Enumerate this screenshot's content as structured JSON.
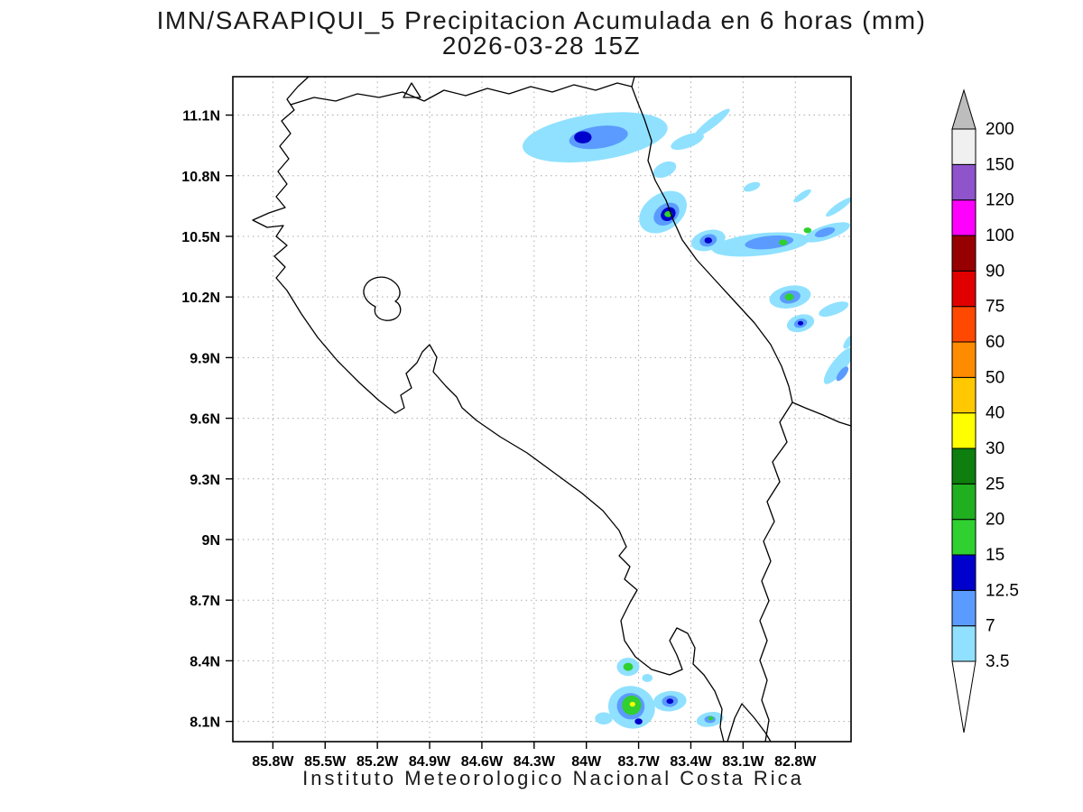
{
  "title": {
    "line1": "IMN/SARAPIQUI_5 Precipitacion Acumulada en 6 horas (mm)",
    "line2": "2026-03-28 15Z"
  },
  "footer": "Instituto Meteorologico Nacional Costa Rica",
  "chart_data": {
    "type": "map-contour",
    "title": "IMN/SARAPIQUI_5 Precipitacion Acumulada en 6 horas (mm)",
    "valid_time": "2026-03-28 15Z",
    "units": "mm",
    "region": "Costa Rica",
    "lon_range_w": [
      86.03,
      82.48
    ],
    "lat_range": [
      8.0,
      11.29
    ],
    "lon_ticks": [
      {
        "label": "85.8W",
        "value": 85.8
      },
      {
        "label": "85.5W",
        "value": 85.5
      },
      {
        "label": "85.2W",
        "value": 85.2
      },
      {
        "label": "84.9W",
        "value": 84.9
      },
      {
        "label": "84.6W",
        "value": 84.6
      },
      {
        "label": "84.3W",
        "value": 84.3
      },
      {
        "label": "84W",
        "value": 84.0
      },
      {
        "label": "83.7W",
        "value": 83.7
      },
      {
        "label": "83.4W",
        "value": 83.4
      },
      {
        "label": "83.1W",
        "value": 83.1
      },
      {
        "label": "82.8W",
        "value": 82.8
      }
    ],
    "lat_ticks": [
      {
        "label": "11.1N",
        "value": 11.1
      },
      {
        "label": "10.8N",
        "value": 10.8
      },
      {
        "label": "10.5N",
        "value": 10.5
      },
      {
        "label": "10.2N",
        "value": 10.2
      },
      {
        "label": "9.9N",
        "value": 9.9
      },
      {
        "label": "9.6N",
        "value": 9.6
      },
      {
        "label": "9.3N",
        "value": 9.3
      },
      {
        "label": "9N",
        "value": 9.0
      },
      {
        "label": "8.7N",
        "value": 8.7
      },
      {
        "label": "8.4N",
        "value": 8.4
      },
      {
        "label": "8.1N",
        "value": 8.1
      }
    ],
    "legend": {
      "levels": [
        3.5,
        7,
        12.5,
        15,
        20,
        25,
        30,
        40,
        50,
        60,
        75,
        90,
        100,
        120,
        150,
        200
      ],
      "labels": [
        "3.5",
        "7",
        "12.5",
        "15",
        "20",
        "25",
        "30",
        "40",
        "50",
        "60",
        "75",
        "90",
        "100",
        "120",
        "150",
        "200"
      ],
      "colors": [
        "#8fe1ff",
        "#5b9bff",
        "#0000cd",
        "#2fd02f",
        "#1faf1f",
        "#0e7e0e",
        "#ffff00",
        "#ffc800",
        "#ff8c00",
        "#ff4800",
        "#e00000",
        "#970000",
        "#ff00ff",
        "#8f53cc",
        "#f0f0f0",
        "#bdbdbd"
      ],
      "below_color": "#ffffff"
    },
    "precip_cells": [
      {
        "lon_w": 83.95,
        "lat": 10.99,
        "rx_deg": 0.42,
        "ry_deg": 0.115,
        "rot": -8,
        "level_mm": 3.5
      },
      {
        "lon_w": 83.93,
        "lat": 10.99,
        "rx_deg": 0.17,
        "ry_deg": 0.055,
        "rot": -8,
        "level_mm": 7
      },
      {
        "lon_w": 84.02,
        "lat": 10.99,
        "rx_deg": 0.05,
        "ry_deg": 0.03,
        "rot": 0,
        "level_mm": 12.5
      },
      {
        "lon_w": 83.42,
        "lat": 10.97,
        "rx_deg": 0.1,
        "ry_deg": 0.032,
        "rot": -20,
        "level_mm": 3.5
      },
      {
        "lon_w": 83.28,
        "lat": 11.06,
        "rx_deg": 0.13,
        "ry_deg": 0.022,
        "rot": -38,
        "level_mm": 3.5
      },
      {
        "lon_w": 83.55,
        "lat": 10.83,
        "rx_deg": 0.07,
        "ry_deg": 0.035,
        "rot": -25,
        "level_mm": 3.5
      },
      {
        "lon_w": 83.56,
        "lat": 10.62,
        "rx_deg": 0.15,
        "ry_deg": 0.09,
        "rot": -35,
        "level_mm": 3.5
      },
      {
        "lon_w": 83.54,
        "lat": 10.61,
        "rx_deg": 0.08,
        "ry_deg": 0.05,
        "rot": -35,
        "level_mm": 7
      },
      {
        "lon_w": 83.53,
        "lat": 10.61,
        "rx_deg": 0.045,
        "ry_deg": 0.032,
        "rot": -35,
        "level_mm": 12.5
      },
      {
        "lon_w": 83.53,
        "lat": 10.61,
        "rx_deg": 0.022,
        "ry_deg": 0.015,
        "rot": 0,
        "level_mm": 15
      },
      {
        "lon_w": 83.3,
        "lat": 10.48,
        "rx_deg": 0.1,
        "ry_deg": 0.05,
        "rot": -15,
        "level_mm": 3.5
      },
      {
        "lon_w": 83.3,
        "lat": 10.48,
        "rx_deg": 0.05,
        "ry_deg": 0.03,
        "rot": -15,
        "level_mm": 7
      },
      {
        "lon_w": 83.3,
        "lat": 10.48,
        "rx_deg": 0.022,
        "ry_deg": 0.015,
        "rot": 0,
        "level_mm": 12.5
      },
      {
        "lon_w": 83.0,
        "lat": 10.46,
        "rx_deg": 0.28,
        "ry_deg": 0.055,
        "rot": -6,
        "level_mm": 3.5
      },
      {
        "lon_w": 82.95,
        "lat": 10.47,
        "rx_deg": 0.14,
        "ry_deg": 0.032,
        "rot": -6,
        "level_mm": 7
      },
      {
        "lon_w": 82.87,
        "lat": 10.47,
        "rx_deg": 0.024,
        "ry_deg": 0.015,
        "rot": 0,
        "level_mm": 15
      },
      {
        "lon_w": 82.62,
        "lat": 10.52,
        "rx_deg": 0.14,
        "ry_deg": 0.035,
        "rot": -18,
        "level_mm": 3.5
      },
      {
        "lon_w": 82.63,
        "lat": 10.52,
        "rx_deg": 0.06,
        "ry_deg": 0.02,
        "rot": -18,
        "level_mm": 7
      },
      {
        "lon_w": 82.73,
        "lat": 10.53,
        "rx_deg": 0.022,
        "ry_deg": 0.014,
        "rot": 0,
        "level_mm": 15
      },
      {
        "lon_w": 82.55,
        "lat": 10.645,
        "rx_deg": 0.09,
        "ry_deg": 0.018,
        "rot": -35,
        "level_mm": 3.5
      },
      {
        "lon_w": 82.76,
        "lat": 10.7,
        "rx_deg": 0.06,
        "ry_deg": 0.016,
        "rot": -35,
        "level_mm": 3.5
      },
      {
        "lon_w": 83.05,
        "lat": 10.745,
        "rx_deg": 0.05,
        "ry_deg": 0.02,
        "rot": -20,
        "level_mm": 3.5
      },
      {
        "lon_w": 82.83,
        "lat": 10.2,
        "rx_deg": 0.12,
        "ry_deg": 0.055,
        "rot": -10,
        "level_mm": 3.5
      },
      {
        "lon_w": 82.83,
        "lat": 10.2,
        "rx_deg": 0.06,
        "ry_deg": 0.032,
        "rot": -10,
        "level_mm": 7
      },
      {
        "lon_w": 82.835,
        "lat": 10.2,
        "rx_deg": 0.026,
        "ry_deg": 0.018,
        "rot": 0,
        "level_mm": 15
      },
      {
        "lon_w": 82.58,
        "lat": 10.14,
        "rx_deg": 0.09,
        "ry_deg": 0.028,
        "rot": -20,
        "level_mm": 3.5
      },
      {
        "lon_w": 82.77,
        "lat": 10.07,
        "rx_deg": 0.08,
        "ry_deg": 0.042,
        "rot": -15,
        "level_mm": 3.5
      },
      {
        "lon_w": 82.77,
        "lat": 10.07,
        "rx_deg": 0.038,
        "ry_deg": 0.022,
        "rot": -15,
        "level_mm": 7
      },
      {
        "lon_w": 82.77,
        "lat": 10.07,
        "rx_deg": 0.016,
        "ry_deg": 0.011,
        "rot": 0,
        "level_mm": 12.5
      },
      {
        "lon_w": 82.55,
        "lat": 9.86,
        "rx_deg": 0.13,
        "ry_deg": 0.035,
        "rot": -52,
        "level_mm": 3.5
      },
      {
        "lon_w": 82.53,
        "lat": 9.82,
        "rx_deg": 0.05,
        "ry_deg": 0.018,
        "rot": -52,
        "level_mm": 7
      },
      {
        "lon_w": 82.49,
        "lat": 9.98,
        "rx_deg": 0.05,
        "ry_deg": 0.018,
        "rot": -52,
        "level_mm": 3.5
      },
      {
        "lon_w": 83.76,
        "lat": 8.37,
        "rx_deg": 0.065,
        "ry_deg": 0.045,
        "rot": 0,
        "level_mm": 3.5
      },
      {
        "lon_w": 83.76,
        "lat": 8.37,
        "rx_deg": 0.028,
        "ry_deg": 0.02,
        "rot": 0,
        "level_mm": 15
      },
      {
        "lon_w": 83.65,
        "lat": 8.315,
        "rx_deg": 0.03,
        "ry_deg": 0.02,
        "rot": 0,
        "level_mm": 3.5
      },
      {
        "lon_w": 83.74,
        "lat": 8.17,
        "rx_deg": 0.135,
        "ry_deg": 0.105,
        "rot": 15,
        "level_mm": 3.5
      },
      {
        "lon_w": 83.745,
        "lat": 8.175,
        "rx_deg": 0.08,
        "ry_deg": 0.065,
        "rot": 15,
        "level_mm": 7
      },
      {
        "lon_w": 83.74,
        "lat": 8.18,
        "rx_deg": 0.055,
        "ry_deg": 0.048,
        "rot": 10,
        "level_mm": 15
      },
      {
        "lon_w": 83.735,
        "lat": 8.185,
        "rx_deg": 0.016,
        "ry_deg": 0.012,
        "rot": 0,
        "level_mm": 30
      },
      {
        "lon_w": 83.7,
        "lat": 8.1,
        "rx_deg": 0.022,
        "ry_deg": 0.015,
        "rot": 0,
        "level_mm": 12.5
      },
      {
        "lon_w": 83.9,
        "lat": 8.115,
        "rx_deg": 0.05,
        "ry_deg": 0.03,
        "rot": 0,
        "level_mm": 3.5
      },
      {
        "lon_w": 83.52,
        "lat": 8.2,
        "rx_deg": 0.095,
        "ry_deg": 0.05,
        "rot": -5,
        "level_mm": 3.5
      },
      {
        "lon_w": 83.52,
        "lat": 8.2,
        "rx_deg": 0.046,
        "ry_deg": 0.028,
        "rot": -5,
        "level_mm": 7
      },
      {
        "lon_w": 83.52,
        "lat": 8.2,
        "rx_deg": 0.02,
        "ry_deg": 0.013,
        "rot": 0,
        "level_mm": 12.5
      },
      {
        "lon_w": 83.29,
        "lat": 8.11,
        "rx_deg": 0.078,
        "ry_deg": 0.036,
        "rot": -10,
        "level_mm": 3.5
      },
      {
        "lon_w": 83.29,
        "lat": 8.11,
        "rx_deg": 0.032,
        "ry_deg": 0.018,
        "rot": 0,
        "level_mm": 7
      },
      {
        "lon_w": 83.285,
        "lat": 8.115,
        "rx_deg": 0.014,
        "ry_deg": 0.01,
        "rot": 0,
        "level_mm": 15
      }
    ]
  }
}
